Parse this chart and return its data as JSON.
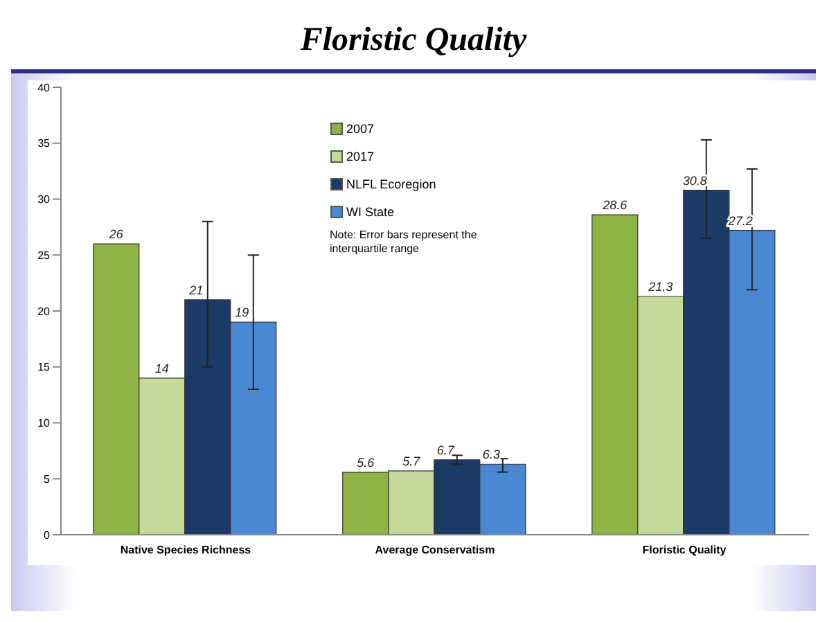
{
  "chart_data": {
    "type": "bar",
    "title": "Floristic Quality",
    "categories": [
      "Native Species Richness",
      "Average Conservatism",
      "Floristic Quality"
    ],
    "series": [
      {
        "name": "2007",
        "color": "#8fb446",
        "values": [
          26,
          5.6,
          28.6
        ]
      },
      {
        "name": "2017",
        "color": "#c5d99b",
        "values": [
          14,
          5.7,
          21.3
        ]
      },
      {
        "name": "NLFL Ecoregion",
        "color": "#1b3a66",
        "values": [
          21,
          6.7,
          30.8
        ],
        "errors": [
          [
            15,
            28
          ],
          [
            6.3,
            7.1
          ],
          [
            26.5,
            35.3
          ]
        ]
      },
      {
        "name": "WI State",
        "color": "#4a88d4",
        "values": [
          19,
          6.3,
          27.2
        ],
        "errors": [
          [
            13,
            25
          ],
          [
            5.6,
            6.8
          ],
          [
            21.9,
            32.7
          ]
        ]
      }
    ],
    "ylim": [
      0,
      40
    ],
    "yticks": [
      0,
      5,
      10,
      15,
      20,
      25,
      30,
      35,
      40
    ],
    "legend": "top",
    "marker": "square",
    "data_labels": true,
    "annotations": [
      "Note: Error bars represent the interquartile range"
    ]
  }
}
